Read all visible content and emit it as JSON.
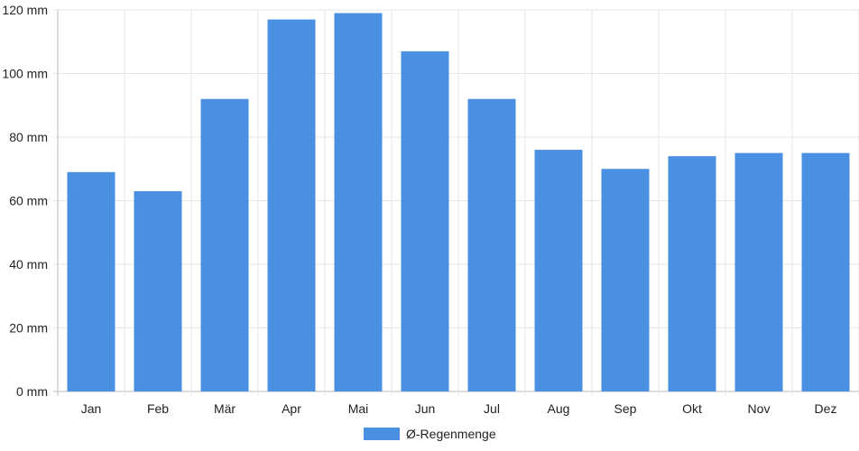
{
  "chart_data": {
    "type": "bar",
    "categories": [
      "Jan",
      "Feb",
      "Mär",
      "Apr",
      "Mai",
      "Jun",
      "Jul",
      "Aug",
      "Sep",
      "Okt",
      "Nov",
      "Dez"
    ],
    "series": [
      {
        "name": "Ø-Regenmenge",
        "values": [
          69,
          63,
          92,
          117,
          119,
          107,
          92,
          76,
          70,
          74,
          75,
          75
        ]
      }
    ],
    "ylim": [
      0,
      120
    ],
    "y_ticks": [
      0,
      20,
      40,
      60,
      80,
      100,
      120
    ],
    "y_tick_suffix": " mm",
    "y_tick_labels": [
      "0 mm",
      "20 mm",
      "40 mm",
      "60 mm",
      "80 mm",
      "100 mm",
      "120 mm"
    ],
    "grid": true,
    "legend_position": "bottom",
    "colors": {
      "bar": "#4a90e2",
      "grid": "#e6e6e6",
      "axis": "#bbbbbb"
    }
  }
}
